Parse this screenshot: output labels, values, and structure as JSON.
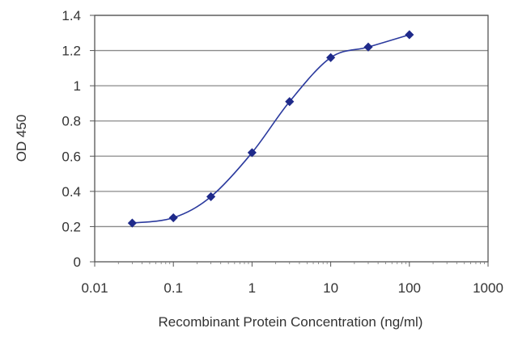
{
  "chart_data": {
    "type": "scatter",
    "title": "",
    "xlabel": "Recombinant Protein Concentration (ng/ml)",
    "ylabel": "OD 450",
    "x_scale": "log",
    "xlim": [
      0.01,
      1000
    ],
    "ylim": [
      0,
      1.4
    ],
    "x_ticks": [
      "0.01",
      "0.1",
      "1",
      "10",
      "100",
      "1000"
    ],
    "x_tick_values": [
      0.01,
      0.1,
      1,
      10,
      100,
      1000
    ],
    "y_ticks": [
      "0",
      "0.2",
      "0.4",
      "0.6",
      "0.8",
      "1",
      "1.2",
      "1.4"
    ],
    "y_tick_values": [
      0,
      0.2,
      0.4,
      0.6,
      0.8,
      1,
      1.2,
      1.4
    ],
    "grid": "horizontal",
    "legend": "none",
    "series": [
      {
        "x": [
          0.03,
          0.1,
          0.3,
          1,
          3,
          10,
          30,
          100
        ],
        "y": [
          0.22,
          0.25,
          0.37,
          0.62,
          0.91,
          1.16,
          1.22,
          1.29
        ],
        "color": "#2b3a9e",
        "line": "smooth",
        "marker": "diamond"
      }
    ]
  }
}
